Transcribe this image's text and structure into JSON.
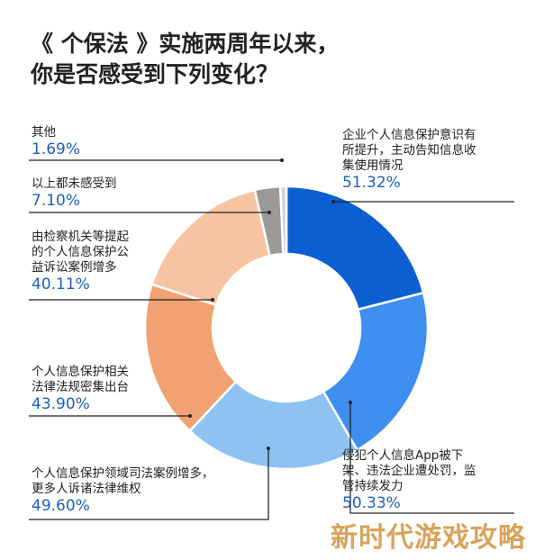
{
  "title_line1": "《 个保法 》实施两周年以来，",
  "title_line2": "你是否感受到下列变化？",
  "watermark": "新时代游戏攻略",
  "chart_data": {
    "type": "pie",
    "donut": true,
    "title": "《 个保法 》实施两周年以来，你是否感受到下列变化？",
    "slices": [
      {
        "label_lines": [
          "企业个人信息保护意识有",
          "所提升，主动告知信息收",
          "集使用情况"
        ],
        "value": 51.32,
        "value_text": "51.32%",
        "color": "#0b5fd0"
      },
      {
        "label_lines": [
          "侵犯个人信息App被下",
          "架、违法企业遭处罚，监",
          "管持续发力"
        ],
        "value": 50.33,
        "value_text": "50.33%",
        "color": "#3f8ff0"
      },
      {
        "label_lines": [
          "个人信息保护领域司法案例增多，",
          "更多人诉诸法律维权"
        ],
        "value": 49.6,
        "value_text": "49.60%",
        "color": "#8ec2f2"
      },
      {
        "label_lines": [
          "个人信息保护相关",
          "法律法规密集出台"
        ],
        "value": 43.9,
        "value_text": "43.90%",
        "color": "#f2a272"
      },
      {
        "label_lines": [
          "由检察机关等提起",
          "的个人信息保护公",
          "益诉讼案例增多"
        ],
        "value": 40.11,
        "value_text": "40.11%",
        "color": "#f7c4a2"
      },
      {
        "label_lines": [
          "以上都未感受到"
        ],
        "value": 7.1,
        "value_text": "7.10%",
        "color": "#9a9a9a"
      },
      {
        "label_lines": [
          "其他"
        ],
        "value": 1.69,
        "value_text": "1.69%",
        "color": "#d4d4d4"
      }
    ]
  }
}
